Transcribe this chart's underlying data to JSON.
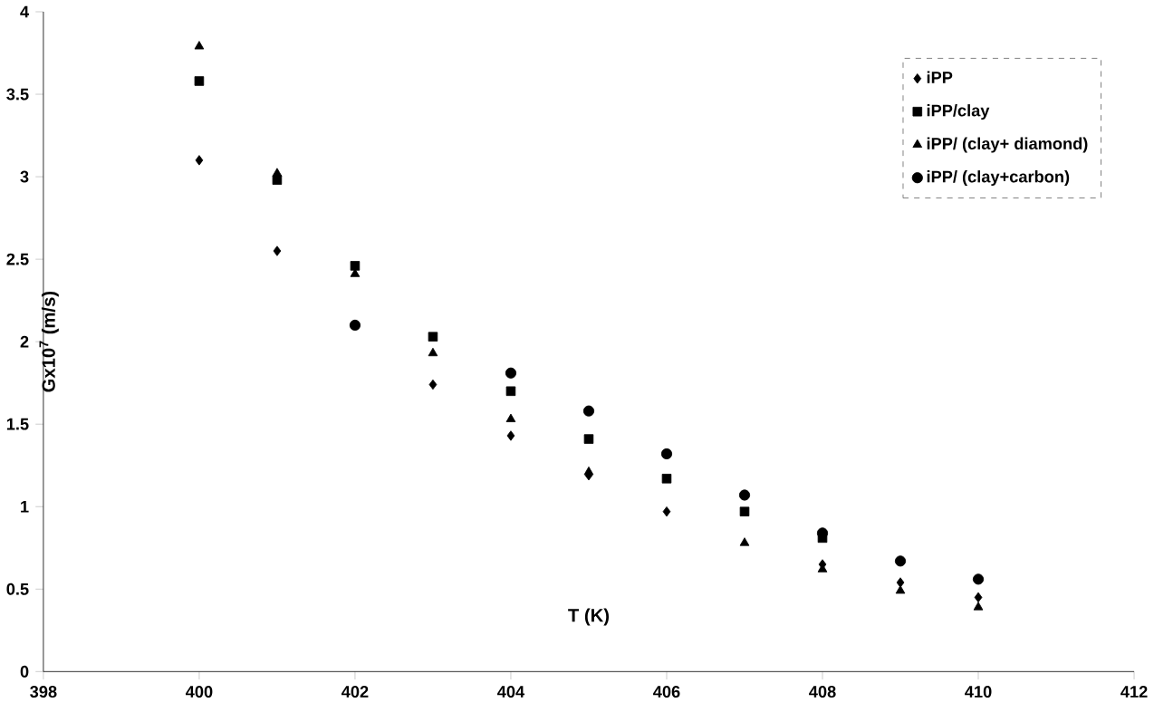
{
  "chart_data": {
    "type": "scatter",
    "xlabel": "T  (K)",
    "ylabel": "Gx10$^{7}$ (m/s)",
    "x": [
      400,
      401,
      402,
      403,
      404,
      405,
      406,
      407,
      408,
      409,
      410
    ],
    "series": [
      {
        "name": "iPP",
        "color": "#000000",
        "marker": "diamond",
        "values": [
          3.1,
          2.55,
          null,
          1.74,
          1.43,
          1.19,
          0.97,
          null,
          0.65,
          0.54,
          0.45
        ]
      },
      {
        "name": "iPP/clay",
        "color": "#000000",
        "marker": "square",
        "values": [
          3.58,
          2.98,
          2.46,
          2.03,
          1.7,
          1.41,
          1.17,
          0.97,
          0.81,
          null,
          null
        ]
      },
      {
        "name": "iPP/ (clay+ diamond)",
        "color": "#000000",
        "marker": "triangle",
        "values": [
          3.79,
          3.02,
          2.41,
          1.93,
          1.53,
          1.21,
          null,
          0.78,
          0.62,
          0.49,
          0.39
        ]
      },
      {
        "name": "iPP/ (clay+carbon)",
        "color": "#000000",
        "marker": "circle",
        "values": [
          null,
          null,
          2.1,
          null,
          1.81,
          1.58,
          1.32,
          1.07,
          0.84,
          0.67,
          0.56
        ]
      }
    ],
    "xlim": [
      398,
      412
    ],
    "xticks": [
      398,
      400,
      402,
      404,
      406,
      408,
      410,
      412
    ],
    "ylim": [
      0,
      4
    ],
    "yticks": [
      0,
      0.5,
      1,
      1.5,
      2,
      2.5,
      3,
      3.5,
      4
    ],
    "grid": false,
    "legend": "top right"
  }
}
